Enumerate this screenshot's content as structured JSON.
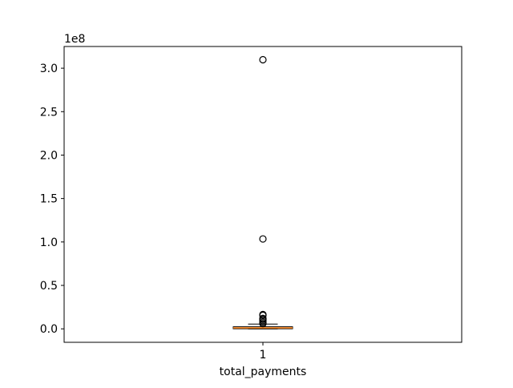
{
  "chart_data": {
    "type": "box",
    "xlabel": "total_payments",
    "x_tick_labels": [
      "1"
    ],
    "y_offset_label": "1e8",
    "y_ticks": [
      0.0,
      0.5,
      1.0,
      1.5,
      2.0,
      2.5,
      3.0
    ],
    "y_tick_labels": [
      "0.0",
      "0.5",
      "1.0",
      "1.5",
      "2.0",
      "2.5",
      "3.0"
    ],
    "ylim": [
      -0.155,
      3.25
    ],
    "y_scale_factor": 100000000,
    "box": {
      "category": "1",
      "whisker_low": 0.0,
      "q1": 0.001,
      "median": 0.011,
      "q3": 0.024,
      "whisker_high": 0.055
    },
    "outliers": [
      3.098,
      1.035,
      0.165,
      0.155,
      0.12,
      0.11,
      0.095,
      0.075,
      0.06
    ],
    "colors": {
      "median": "#ff7f0e",
      "box": "#000000",
      "flier": "#000000"
    },
    "grid": false
  }
}
